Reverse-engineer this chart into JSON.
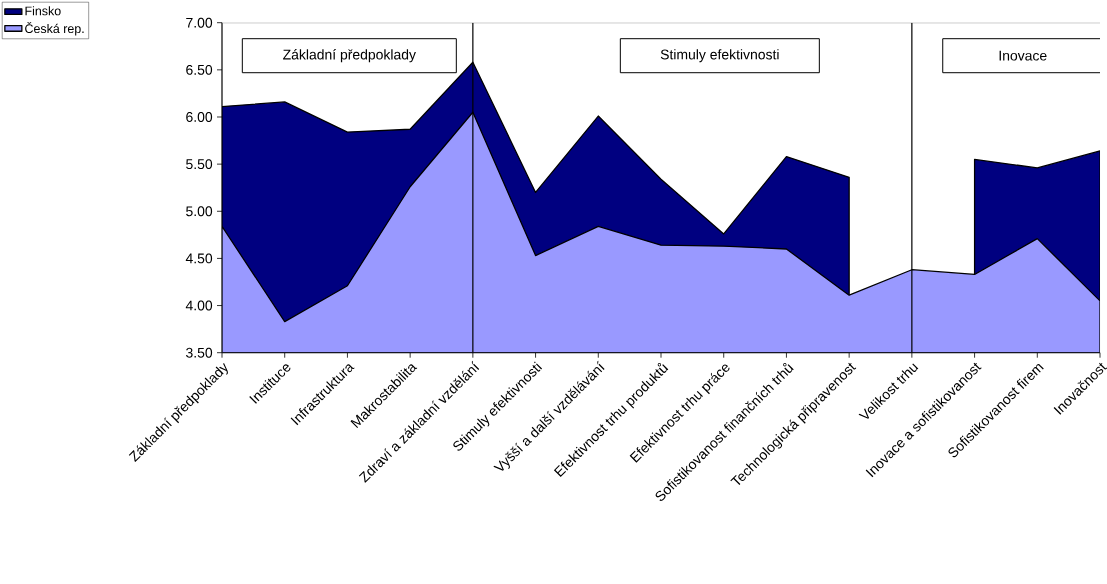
{
  "chart_data": {
    "type": "area",
    "categories": [
      "Základní předpoklady",
      "Instituce",
      "Infrastruktura",
      "Makrostabilita",
      "Zdraví a základní vzdělání",
      "Stimuly efektivnosti",
      "Vyšší a další vzdělávání",
      "Efektivnost trhu produktů",
      "Efektivnost trhu práce",
      "Sofistikovanost finančních trhů",
      "Technologická připravenost",
      "Velikost trhu",
      "Inovace a sofistikovanost",
      "Sofistikovanost firem",
      "Inovačnost"
    ],
    "series": [
      {
        "name": "Finsko",
        "color": "#000080",
        "values": [
          6.11,
          6.16,
          5.84,
          5.87,
          6.58,
          5.2,
          6.01,
          5.34,
          4.76,
          5.58,
          5.36,
          null,
          5.55,
          5.46,
          5.64
        ]
      },
      {
        "name": "Česká rep.",
        "color": "#9999ff",
        "values": [
          4.84,
          3.83,
          4.21,
          5.26,
          6.05,
          4.53,
          4.84,
          4.64,
          4.63,
          4.6,
          4.11,
          4.38,
          4.33,
          4.71,
          4.05
        ]
      }
    ],
    "ylim": [
      3.5,
      7.0
    ],
    "yticks": [
      {
        "value": 3.5,
        "label": "3.50"
      },
      {
        "value": 4.0,
        "label": "4.00"
      },
      {
        "value": 4.5,
        "label": "4.50"
      },
      {
        "value": 5.0,
        "label": "5.00"
      },
      {
        "value": 5.5,
        "label": "5.50"
      },
      {
        "value": 6.0,
        "label": "6.00"
      },
      {
        "value": 6.5,
        "label": "6.50"
      },
      {
        "value": 7.0,
        "label": "7.00"
      }
    ],
    "ref_lines": [
      {
        "axis": "x",
        "value": "Zdraví a základní vzdělání",
        "color": "#000000"
      },
      {
        "axis": "x",
        "value": "Velikost trhu",
        "color": "#000000"
      }
    ],
    "annotations": [
      "Základní předpoklady",
      "Stimuly efektivnosti",
      "Inovace"
    ],
    "legend": "top left",
    "grid": false
  }
}
